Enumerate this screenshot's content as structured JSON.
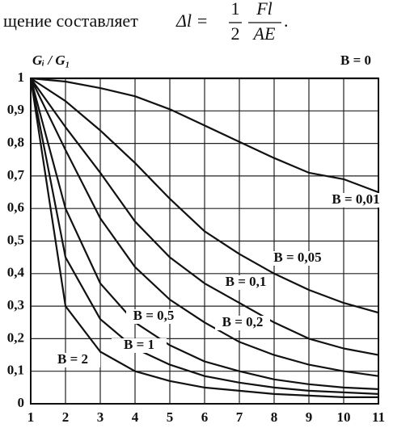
{
  "header": {
    "text": "щение составляет",
    "formula_lhs": "Δl =",
    "coef_num": "1",
    "coef_den": "2",
    "frac_num": "Fl",
    "frac_den": "AE",
    "end": "."
  },
  "chart_data": {
    "type": "line",
    "y_label": "Gᵢ / G₁",
    "x": [
      1,
      2,
      3,
      4,
      5,
      6,
      7,
      8,
      9,
      10,
      11
    ],
    "xlim": [
      1,
      11
    ],
    "xticks": [
      1,
      2,
      3,
      4,
      5,
      6,
      7,
      8,
      9,
      10,
      11
    ],
    "ylim": [
      0,
      1
    ],
    "yticks": [
      0,
      {
        "value": 0.1,
        "label": "0,1"
      },
      {
        "value": 0.2,
        "label": "0,2"
      },
      {
        "value": 0.3,
        "label": "0,3"
      },
      {
        "value": 0.4,
        "label": "0,4"
      },
      {
        "value": 0.5,
        "label": "0,5"
      },
      {
        "value": 0.6,
        "label": "0,6"
      },
      {
        "value": 0.7,
        "label": "0,7"
      },
      {
        "value": 0.8,
        "label": "0,8"
      },
      {
        "value": 0.9,
        "label": "0,9"
      },
      1
    ],
    "grid": true,
    "color": "#111111",
    "series": [
      {
        "name": "B = 0",
        "values": [
          1,
          1,
          1,
          1,
          1,
          1,
          1,
          1,
          1,
          1,
          1
        ]
      },
      {
        "name": "B = 0,01",
        "values": [
          1,
          0.99,
          0.97,
          0.945,
          0.905,
          0.855,
          0.805,
          0.755,
          0.71,
          0.69,
          0.65
        ]
      },
      {
        "name": "B = 0,05",
        "values": [
          1,
          0.93,
          0.84,
          0.74,
          0.63,
          0.53,
          0.46,
          0.4,
          0.35,
          0.31,
          0.28
        ]
      },
      {
        "name": "B = 0,1",
        "values": [
          1,
          0.85,
          0.71,
          0.56,
          0.45,
          0.37,
          0.31,
          0.25,
          0.2,
          0.17,
          0.15
        ]
      },
      {
        "name": "B = 0,2",
        "values": [
          1,
          0.78,
          0.57,
          0.42,
          0.32,
          0.25,
          0.19,
          0.15,
          0.12,
          0.1,
          0.085
        ]
      },
      {
        "name": "B = 0,5",
        "values": [
          1,
          0.6,
          0.37,
          0.25,
          0.18,
          0.13,
          0.1,
          0.075,
          0.06,
          0.05,
          0.045
        ]
      },
      {
        "name": "B = 1",
        "values": [
          1,
          0.45,
          0.26,
          0.17,
          0.12,
          0.085,
          0.065,
          0.05,
          0.04,
          0.035,
          0.03
        ]
      },
      {
        "name": "B = 2",
        "values": [
          1,
          0.3,
          0.16,
          0.1,
          0.07,
          0.05,
          0.04,
          0.03,
          0.025,
          0.02,
          0.02
        ]
      }
    ]
  }
}
